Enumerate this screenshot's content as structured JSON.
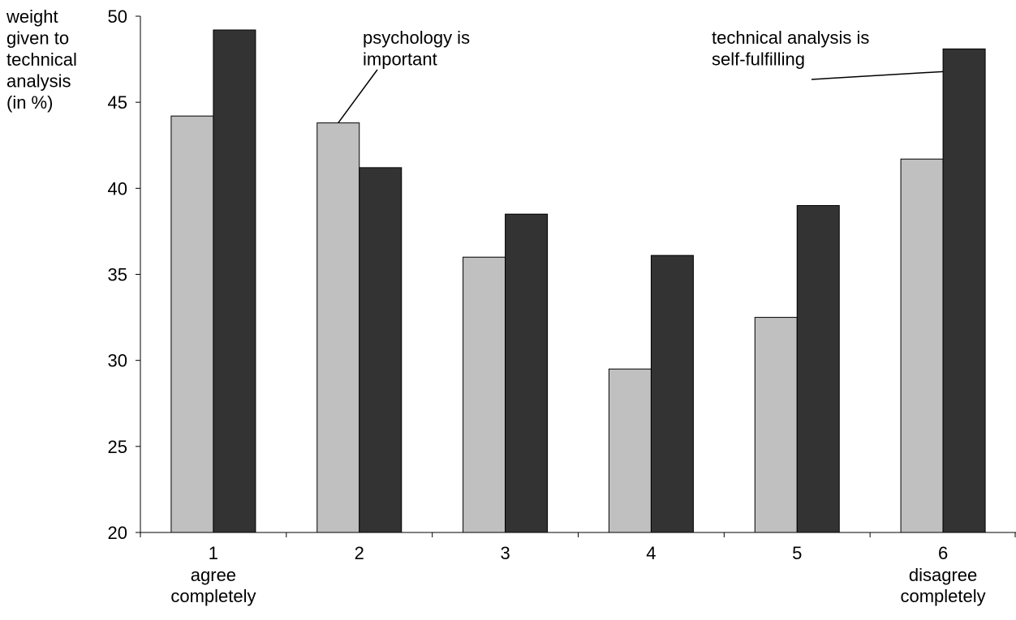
{
  "chart_data": {
    "type": "bar",
    "ylabel_lines": [
      "weight",
      "given to",
      "technical",
      "analysis",
      "(in %)"
    ],
    "ylim": [
      20,
      50
    ],
    "yticks": [
      20,
      25,
      30,
      35,
      40,
      45,
      50
    ],
    "categories": [
      "1",
      "2",
      "3",
      "4",
      "5",
      "6"
    ],
    "category_descriptions": [
      [
        "agree",
        "completely"
      ],
      [],
      [],
      [],
      [],
      [
        "disagree",
        "completely"
      ]
    ],
    "series": [
      {
        "values": [
          44.2,
          43.8,
          36.0,
          29.5,
          32.5,
          41.7
        ],
        "color": "#c0c0c0"
      },
      {
        "values": [
          49.2,
          41.2,
          38.5,
          36.1,
          39.0,
          48.1
        ],
        "color": "#333333"
      }
    ],
    "grid": false,
    "legend": "none",
    "annotations": [
      {
        "lines": [
          "psychology is",
          "important"
        ],
        "category": 1,
        "series": 0
      },
      {
        "lines": [
          "technical analysis is",
          "self-fulfilling"
        ],
        "category": 5,
        "series": 1
      }
    ]
  }
}
